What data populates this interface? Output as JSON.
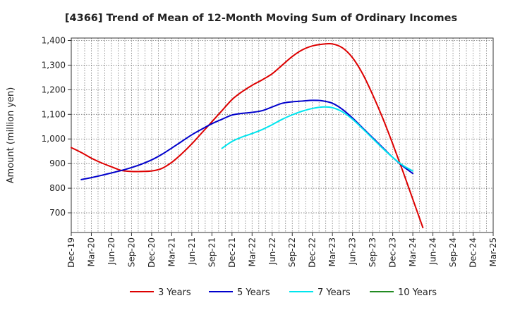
{
  "chart_data": {
    "type": "line",
    "title": "[4366]  Trend of Mean of 12-Month Moving Sum of Ordinary Incomes",
    "xlabel": "",
    "ylabel": "Amount (million yen)",
    "ylim": [
      620,
      1410
    ],
    "yticks": [
      700,
      800,
      900,
      1000,
      1100,
      1200,
      1300,
      1400
    ],
    "ytick_labels": [
      "700",
      "800",
      "900",
      "1,000",
      "1,100",
      "1,200",
      "1,300",
      "1,400"
    ],
    "xtick_labels": [
      "Dec-19",
      "Mar-20",
      "Jun-20",
      "Sep-20",
      "Dec-20",
      "Mar-21",
      "Jun-21",
      "Sep-21",
      "Dec-21",
      "Mar-22",
      "Jun-22",
      "Sep-22",
      "Dec-22",
      "Mar-23",
      "Jun-23",
      "Sep-23",
      "Dec-23",
      "Mar-24",
      "Jun-24",
      "Sep-24",
      "Dec-24",
      "Mar-25"
    ],
    "grid": true,
    "legend_position": "bottom",
    "series": [
      {
        "name": "3 Years",
        "color": "#dd0000",
        "points": [
          [
            0,
            965
          ],
          [
            1,
            945
          ],
          [
            2,
            922
          ],
          [
            3,
            903
          ],
          [
            4,
            887
          ],
          [
            5,
            872
          ],
          [
            6,
            868
          ],
          [
            7,
            868
          ],
          [
            8,
            870
          ],
          [
            9,
            880
          ],
          [
            10,
            905
          ],
          [
            11,
            940
          ],
          [
            12,
            980
          ],
          [
            13,
            1025
          ],
          [
            14,
            1070
          ],
          [
            15,
            1115
          ],
          [
            16,
            1160
          ],
          [
            17,
            1192
          ],
          [
            18,
            1218
          ],
          [
            19,
            1240
          ],
          [
            20,
            1265
          ],
          [
            21,
            1300
          ],
          [
            22,
            1335
          ],
          [
            23,
            1362
          ],
          [
            24,
            1378
          ],
          [
            25,
            1385
          ],
          [
            26,
            1386
          ],
          [
            27,
            1370
          ],
          [
            28,
            1330
          ],
          [
            29,
            1265
          ],
          [
            30,
            1180
          ],
          [
            31,
            1085
          ],
          [
            32,
            980
          ],
          [
            33,
            870
          ],
          [
            34,
            755
          ],
          [
            35,
            640
          ]
        ]
      },
      {
        "name": "5 Years",
        "color": "#0000cc",
        "points": [
          [
            1,
            835
          ],
          [
            2,
            843
          ],
          [
            3,
            852
          ],
          [
            4,
            862
          ],
          [
            5,
            872
          ],
          [
            6,
            884
          ],
          [
            7,
            898
          ],
          [
            8,
            915
          ],
          [
            9,
            937
          ],
          [
            10,
            963
          ],
          [
            11,
            990
          ],
          [
            12,
            1017
          ],
          [
            13,
            1040
          ],
          [
            14,
            1062
          ],
          [
            15,
            1080
          ],
          [
            16,
            1097
          ],
          [
            17,
            1104
          ],
          [
            18,
            1108
          ],
          [
            19,
            1115
          ],
          [
            20,
            1130
          ],
          [
            21,
            1145
          ],
          [
            22,
            1151
          ],
          [
            23,
            1154
          ],
          [
            24,
            1157
          ],
          [
            25,
            1155
          ],
          [
            26,
            1145
          ],
          [
            27,
            1120
          ],
          [
            28,
            1085
          ],
          [
            29,
            1045
          ],
          [
            30,
            1005
          ],
          [
            31,
            965
          ],
          [
            32,
            925
          ],
          [
            33,
            890
          ],
          [
            34,
            860
          ]
        ]
      },
      {
        "name": "7 Years",
        "color": "#00e5ee",
        "points": [
          [
            15,
            962
          ],
          [
            16,
            990
          ],
          [
            17,
            1008
          ],
          [
            18,
            1022
          ],
          [
            19,
            1038
          ],
          [
            20,
            1058
          ],
          [
            21,
            1080
          ],
          [
            22,
            1098
          ],
          [
            23,
            1113
          ],
          [
            24,
            1124
          ],
          [
            25,
            1130
          ],
          [
            26,
            1127
          ],
          [
            27,
            1110
          ],
          [
            28,
            1080
          ],
          [
            29,
            1042
          ],
          [
            30,
            1002
          ],
          [
            31,
            962
          ],
          [
            32,
            925
          ],
          [
            33,
            893
          ],
          [
            34,
            870
          ]
        ]
      },
      {
        "name": "10 Years",
        "color": "#228b22",
        "points": []
      }
    ]
  }
}
